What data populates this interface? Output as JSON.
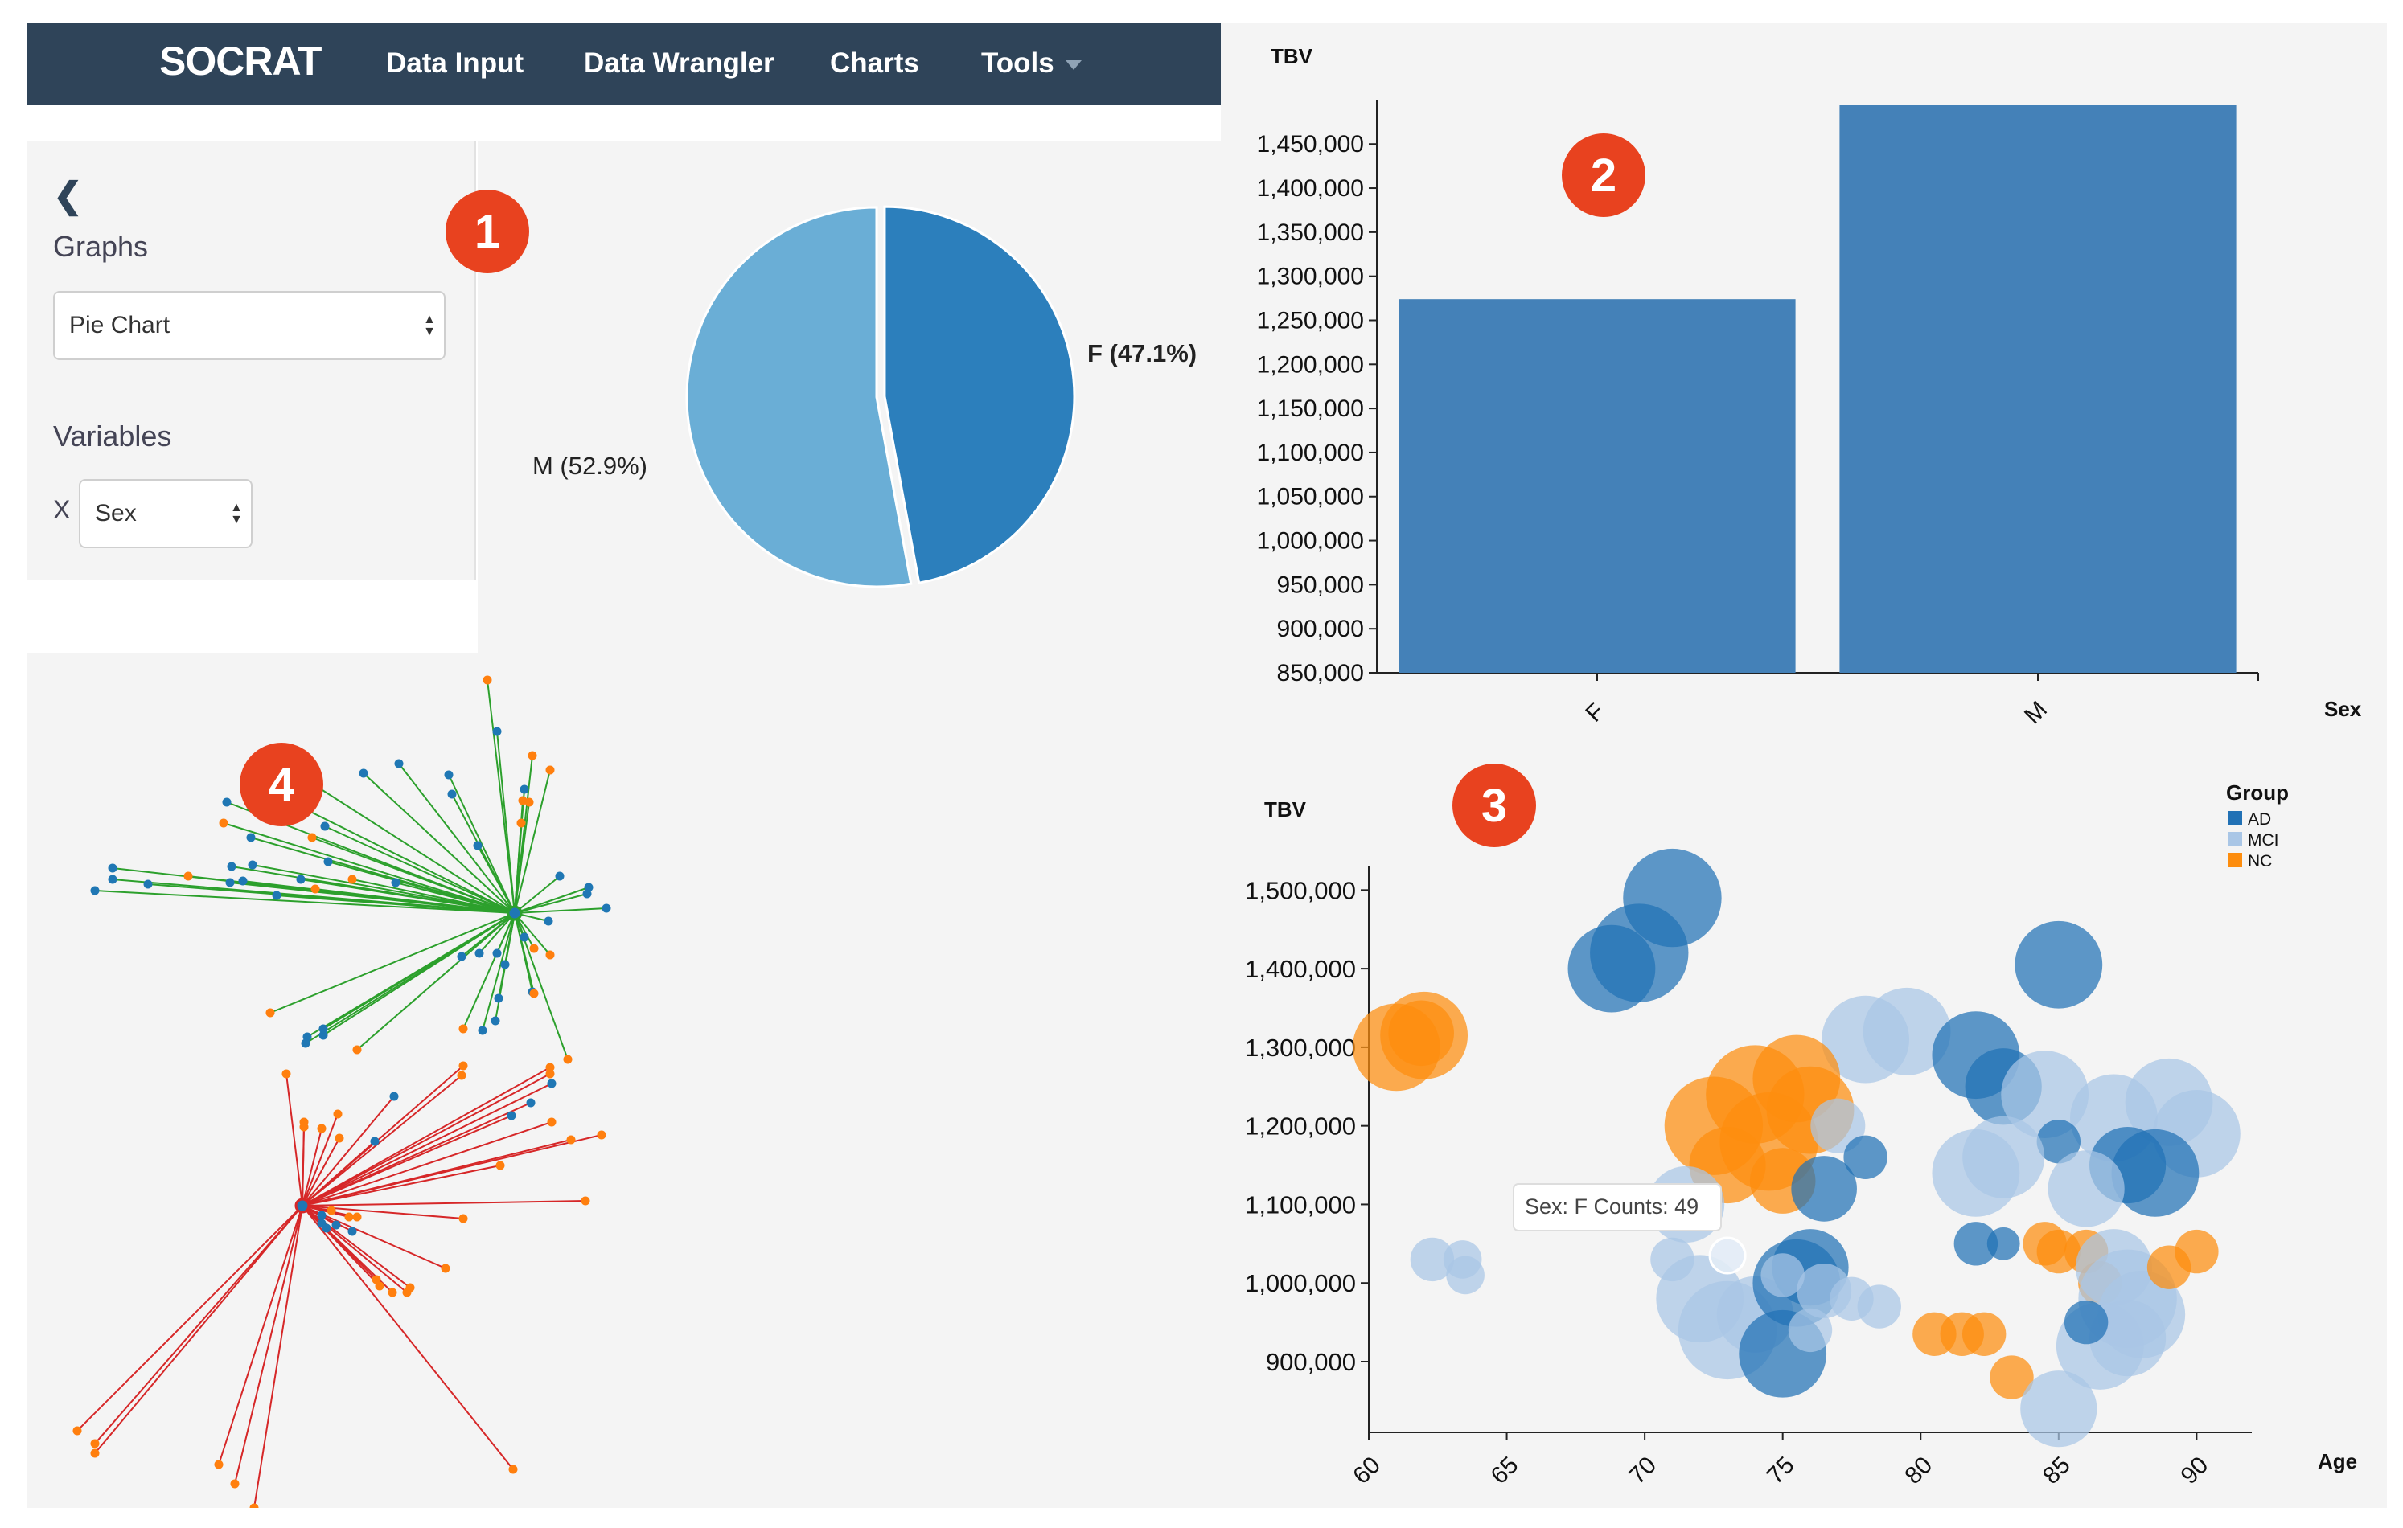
{
  "navbar": {
    "brand": "SOCRAT",
    "links": [
      "Data Input",
      "Data Wrangler",
      "Charts",
      "Tools"
    ]
  },
  "sidebar": {
    "graphs_label": "Graphs",
    "graph_select": "Pie Chart",
    "variables_label": "Variables",
    "x_label": "X",
    "x_select": "Sex"
  },
  "badges": [
    "1",
    "2",
    "3",
    "4"
  ],
  "colors": {
    "nav_bg": "#2f4459",
    "badge": "#e8421f",
    "pie_f": "#2c7fbc",
    "pie_m": "#6aaed6",
    "bar": "#4481b8",
    "AD": "#2171b5",
    "MCI": "#a9c6e6",
    "NC": "#fd8d0e",
    "net_green": "#2ca02c",
    "net_red": "#d62728",
    "node_blue": "#1f77b4",
    "node_orange": "#ff7f0e"
  },
  "chart_data": [
    {
      "id": "pie",
      "type": "pie",
      "categories": [
        "F",
        "M"
      ],
      "values": [
        47.1,
        52.9
      ],
      "labels": [
        "F (47.1%)",
        "M (52.9%)"
      ]
    },
    {
      "id": "bar",
      "type": "bar",
      "categories": [
        "F",
        "M"
      ],
      "values": [
        1274000,
        1494000
      ],
      "xlabel": "Sex",
      "ylabel": "TBV",
      "ylim": [
        850000,
        1494000
      ],
      "yticks": [
        850000,
        900000,
        950000,
        1000000,
        1050000,
        1100000,
        1150000,
        1200000,
        1250000,
        1300000,
        1350000,
        1400000,
        1450000
      ],
      "ytick_labels": [
        "850,000",
        "900,000",
        "950,000",
        "1,000,000",
        "1,050,000",
        "1,100,000",
        "1,150,000",
        "1,200,000",
        "1,250,000",
        "1,300,000",
        "1,350,000",
        "1,400,000",
        "1,450,000"
      ]
    },
    {
      "id": "bubble",
      "type": "scatter",
      "xlabel": "Age",
      "ylabel": "TBV",
      "xlim": [
        60,
        92
      ],
      "ylim": [
        810000,
        1530000
      ],
      "xticks": [
        60,
        65,
        70,
        75,
        80,
        85,
        90
      ],
      "xtick_labels": [
        "60",
        "65",
        "70",
        "75",
        "80",
        "85",
        "90"
      ],
      "yticks": [
        900000,
        1000000,
        1100000,
        1200000,
        1300000,
        1400000,
        1500000
      ],
      "ytick_labels": [
        "900,000",
        "1,000,000",
        "1,100,000",
        "1,200,000",
        "1,300,000",
        "1,400,000",
        "1,500,000"
      ],
      "legend_title": "Group",
      "legend": [
        "AD",
        "MCI",
        "NC"
      ],
      "tooltip": "Sex: F Counts: 49",
      "points": [
        {
          "x": 71.0,
          "y": 1490000,
          "g": "AD",
          "s": 1.8
        },
        {
          "x": 69.8,
          "y": 1420000,
          "g": "AD",
          "s": 1.8
        },
        {
          "x": 68.8,
          "y": 1400000,
          "g": "AD",
          "s": 1.6
        },
        {
          "x": 85.0,
          "y": 1405000,
          "g": "AD",
          "s": 1.6
        },
        {
          "x": 61.0,
          "y": 1300000,
          "g": "NC",
          "s": 1.6
        },
        {
          "x": 62.0,
          "y": 1315000,
          "g": "NC",
          "s": 1.6
        },
        {
          "x": 61.9,
          "y": 1318000,
          "g": "NC",
          "s": 1.2
        },
        {
          "x": 78.0,
          "y": 1310000,
          "g": "MCI",
          "s": 1.6
        },
        {
          "x": 79.5,
          "y": 1320000,
          "g": "MCI",
          "s": 1.6
        },
        {
          "x": 82.0,
          "y": 1290000,
          "g": "AD",
          "s": 1.6
        },
        {
          "x": 83.0,
          "y": 1250000,
          "g": "AD",
          "s": 1.4
        },
        {
          "x": 84.5,
          "y": 1240000,
          "g": "MCI",
          "s": 1.6
        },
        {
          "x": 87.0,
          "y": 1210000,
          "g": "MCI",
          "s": 1.6
        },
        {
          "x": 89.0,
          "y": 1230000,
          "g": "MCI",
          "s": 1.6
        },
        {
          "x": 90.0,
          "y": 1190000,
          "g": "MCI",
          "s": 1.6
        },
        {
          "x": 88.5,
          "y": 1140000,
          "g": "AD",
          "s": 1.6
        },
        {
          "x": 87.5,
          "y": 1150000,
          "g": "AD",
          "s": 1.4
        },
        {
          "x": 85.0,
          "y": 1180000,
          "g": "AD",
          "s": 0.8
        },
        {
          "x": 82.0,
          "y": 1140000,
          "g": "MCI",
          "s": 1.6
        },
        {
          "x": 83.0,
          "y": 1160000,
          "g": "MCI",
          "s": 1.5
        },
        {
          "x": 86.0,
          "y": 1120000,
          "g": "MCI",
          "s": 1.4
        },
        {
          "x": 72.5,
          "y": 1200000,
          "g": "NC",
          "s": 1.8
        },
        {
          "x": 74.0,
          "y": 1240000,
          "g": "NC",
          "s": 1.8
        },
        {
          "x": 75.5,
          "y": 1260000,
          "g": "NC",
          "s": 1.6
        },
        {
          "x": 76.0,
          "y": 1220000,
          "g": "NC",
          "s": 1.6
        },
        {
          "x": 74.5,
          "y": 1180000,
          "g": "NC",
          "s": 1.8
        },
        {
          "x": 73.0,
          "y": 1150000,
          "g": "NC",
          "s": 1.4
        },
        {
          "x": 75.0,
          "y": 1130000,
          "g": "NC",
          "s": 1.2
        },
        {
          "x": 77.0,
          "y": 1200000,
          "g": "MCI",
          "s": 1.0
        },
        {
          "x": 76.5,
          "y": 1120000,
          "g": "AD",
          "s": 1.2
        },
        {
          "x": 78.0,
          "y": 1160000,
          "g": "AD",
          "s": 0.8
        },
        {
          "x": 71.5,
          "y": 1100000,
          "g": "MCI",
          "s": 1.4
        },
        {
          "x": 62.3,
          "y": 1030000,
          "g": "MCI",
          "s": 0.8
        },
        {
          "x": 63.4,
          "y": 1030000,
          "g": "MCI",
          "s": 0.7
        },
        {
          "x": 63.5,
          "y": 1010000,
          "g": "MCI",
          "s": 0.7
        },
        {
          "x": 71.0,
          "y": 1030000,
          "g": "MCI",
          "s": 0.8
        },
        {
          "x": 72.0,
          "y": 980000,
          "g": "MCI",
          "s": 1.6
        },
        {
          "x": 73.0,
          "y": 940000,
          "g": "MCI",
          "s": 1.8
        },
        {
          "x": 74.0,
          "y": 960000,
          "g": "MCI",
          "s": 1.4
        },
        {
          "x": 75.5,
          "y": 1000000,
          "g": "AD",
          "s": 1.6
        },
        {
          "x": 76.0,
          "y": 1020000,
          "g": "AD",
          "s": 1.4
        },
        {
          "x": 75.0,
          "y": 1010000,
          "g": "MCI",
          "s": 0.8
        },
        {
          "x": 76.5,
          "y": 990000,
          "g": "MCI",
          "s": 1.0
        },
        {
          "x": 77.5,
          "y": 980000,
          "g": "MCI",
          "s": 0.8
        },
        {
          "x": 75.0,
          "y": 910000,
          "g": "AD",
          "s": 1.6
        },
        {
          "x": 76.0,
          "y": 940000,
          "g": "MCI",
          "s": 0.8
        },
        {
          "x": 78.5,
          "y": 970000,
          "g": "MCI",
          "s": 0.8
        },
        {
          "x": 82.0,
          "y": 1050000,
          "g": "AD",
          "s": 0.8
        },
        {
          "x": 83.0,
          "y": 1050000,
          "g": "AD",
          "s": 0.6
        },
        {
          "x": 84.5,
          "y": 1050000,
          "g": "NC",
          "s": 0.8
        },
        {
          "x": 85.0,
          "y": 1040000,
          "g": "NC",
          "s": 0.8
        },
        {
          "x": 86.0,
          "y": 1040000,
          "g": "NC",
          "s": 0.8
        },
        {
          "x": 86.5,
          "y": 1000000,
          "g": "NC",
          "s": 0.8
        },
        {
          "x": 87.0,
          "y": 1020000,
          "g": "MCI",
          "s": 1.4
        },
        {
          "x": 87.5,
          "y": 980000,
          "g": "MCI",
          "s": 1.8
        },
        {
          "x": 88.0,
          "y": 960000,
          "g": "MCI",
          "s": 1.6
        },
        {
          "x": 87.5,
          "y": 930000,
          "g": "MCI",
          "s": 1.4
        },
        {
          "x": 86.5,
          "y": 920000,
          "g": "MCI",
          "s": 1.6
        },
        {
          "x": 89.0,
          "y": 1020000,
          "g": "NC",
          "s": 0.8
        },
        {
          "x": 90.0,
          "y": 1040000,
          "g": "NC",
          "s": 0.8
        },
        {
          "x": 80.5,
          "y": 935000,
          "g": "NC",
          "s": 0.8
        },
        {
          "x": 81.5,
          "y": 935000,
          "g": "NC",
          "s": 0.8
        },
        {
          "x": 82.3,
          "y": 935000,
          "g": "NC",
          "s": 0.8
        },
        {
          "x": 83.3,
          "y": 880000,
          "g": "NC",
          "s": 0.8
        },
        {
          "x": 85.0,
          "y": 840000,
          "g": "MCI",
          "s": 1.4
        },
        {
          "x": 86.0,
          "y": 950000,
          "g": "AD",
          "s": 0.8
        },
        {
          "x": 73.0,
          "y": 1035000,
          "g": "MCI",
          "s": 0.6
        }
      ]
    }
  ]
}
